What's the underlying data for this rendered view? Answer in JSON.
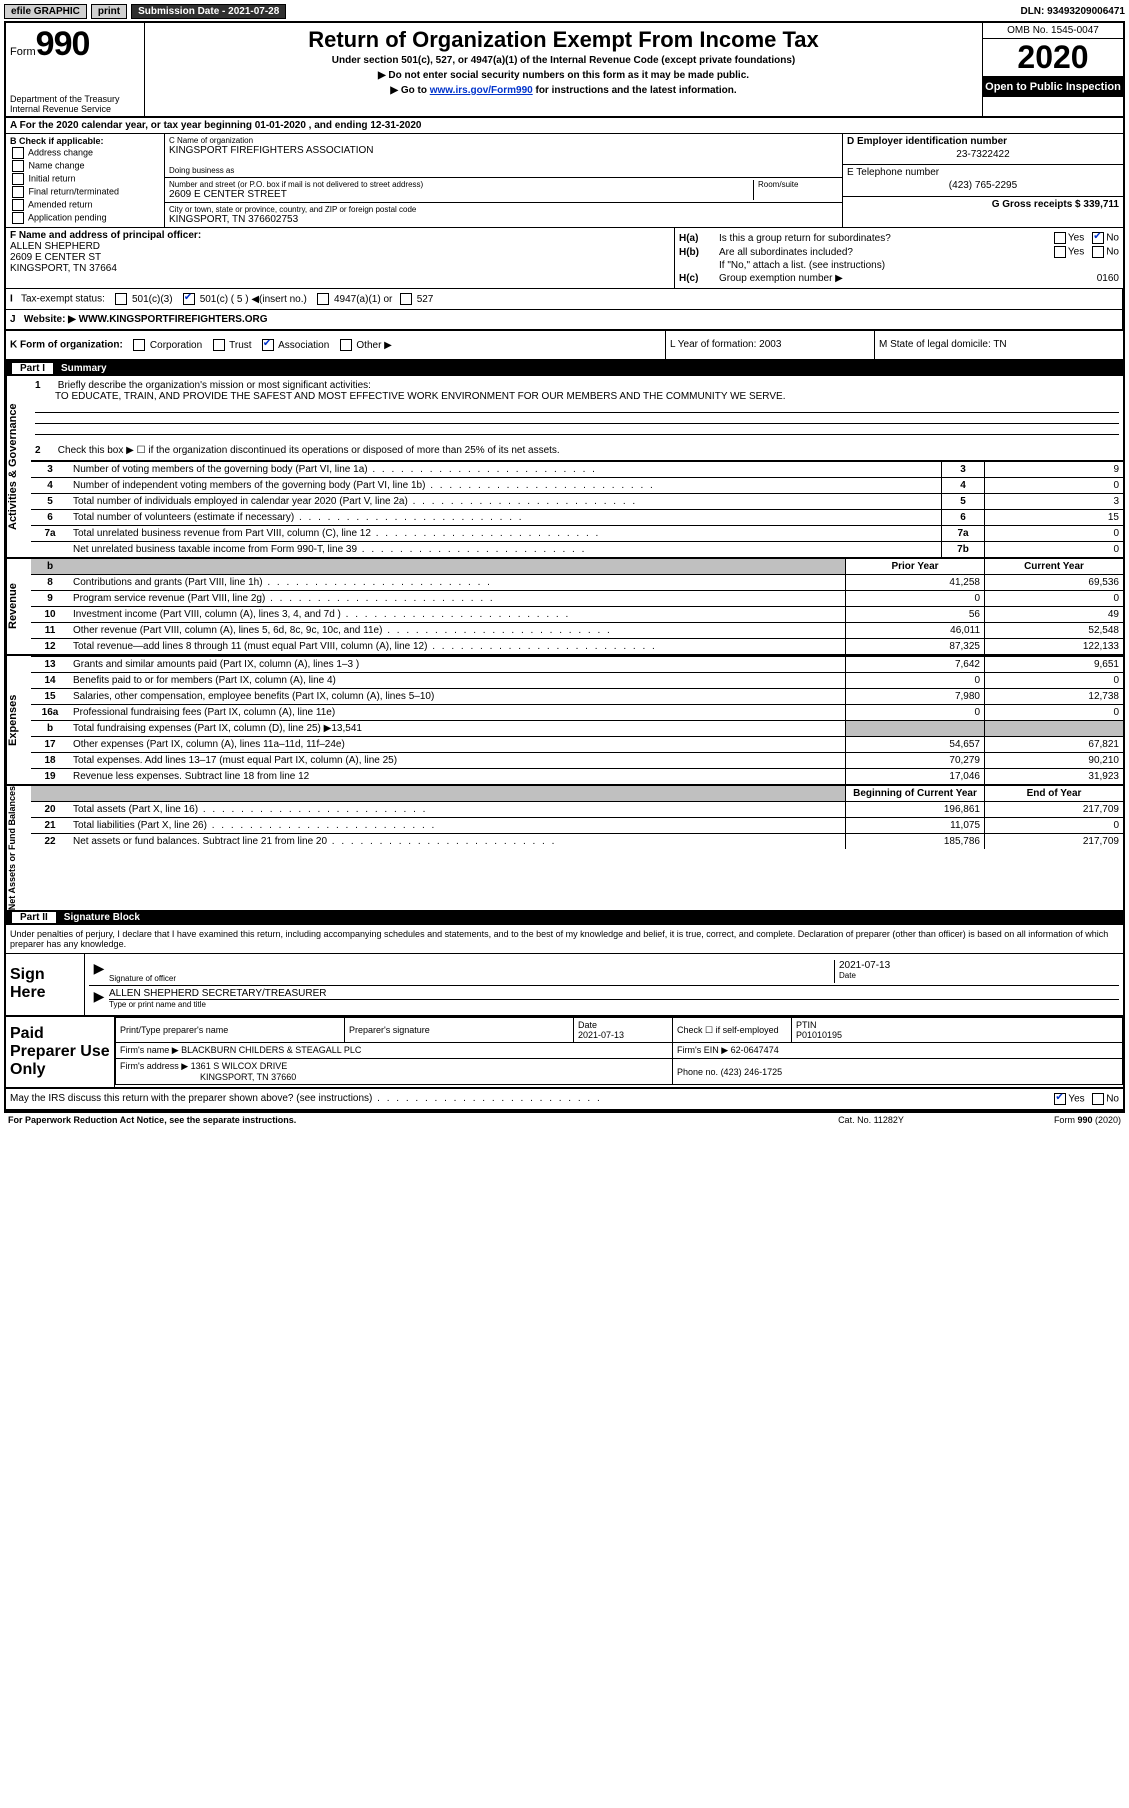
{
  "topbar": {
    "efile_label": "efile GRAPHIC",
    "print_label": "print",
    "submission_label": "Submission Date - 2021-07-28",
    "dln_label": "DLN: 93493209006471"
  },
  "header": {
    "form_prefix": "Form",
    "form_number": "990",
    "dept": "Department of the Treasury\nInternal Revenue Service",
    "title": "Return of Organization Exempt From Income Tax",
    "subtitle": "Under section 501(c), 527, or 4947(a)(1) of the Internal Revenue Code (except private foundations)",
    "warning": "▶ Do not enter social security numbers on this form as it may be made public.",
    "goto": "▶ Go to www.irs.gov/Form990 for instructions and the latest information.",
    "goto_link": "www.irs.gov/Form990",
    "omb": "OMB No. 1545-0047",
    "year": "2020",
    "inspection": "Open to Public Inspection"
  },
  "row_a": "A For the 2020 calendar year, or tax year beginning 01-01-2020   , and ending 12-31-2020",
  "col_b": {
    "header": "B Check if applicable:",
    "items": [
      "Address change",
      "Name change",
      "Initial return",
      "Final return/terminated",
      "Amended return",
      "Application pending"
    ]
  },
  "col_c": {
    "name_label": "C Name of organization",
    "name": "KINGSPORT FIREFIGHTERS ASSOCIATION",
    "dba_label": "Doing business as",
    "dba": "",
    "addr_label": "Number and street (or P.O. box if mail is not delivered to street address)",
    "addr": "2609 E CENTER STREET",
    "room_label": "Room/suite",
    "city_label": "City or town, state or province, country, and ZIP or foreign postal code",
    "city": "KINGSPORT, TN  376602753"
  },
  "col_d": {
    "ein_label": "D Employer identification number",
    "ein": "23-7322422",
    "phone_label": "E Telephone number",
    "phone": "(423) 765-2295",
    "gross_label": "G Gross receipts $ 339,711"
  },
  "section_f": {
    "label": "F Name and address of principal officer:",
    "name": "ALLEN SHEPHERD",
    "addr1": "2609 E CENTER ST",
    "addr2": "KINGSPORT, TN  37664"
  },
  "section_h": {
    "ha_label": "H(a)",
    "ha_text": "Is this a group return for subordinates?",
    "ha_yes": "Yes",
    "ha_no": "No",
    "hb_label": "H(b)",
    "hb_text": "Are all subordinates included?",
    "hb_note": "If \"No,\" attach a list. (see instructions)",
    "hc_label": "H(c)",
    "hc_text": "Group exemption number ▶",
    "hc_val": "0160"
  },
  "tax_exempt": {
    "label_i": "I",
    "label": "Tax-exempt status:",
    "opt1": "501(c)(3)",
    "opt2": "501(c) ( 5 ) ◀(insert no.)",
    "opt3": "4947(a)(1) or",
    "opt4": "527"
  },
  "website": {
    "label_j": "J",
    "label": "Website: ▶",
    "url": "WWW.KINGSPORTFIREFIGHTERS.ORG"
  },
  "form_org": {
    "label_k": "K Form of organization:",
    "opts": [
      "Corporation",
      "Trust",
      "Association",
      "Other ▶"
    ],
    "label_l": "L Year of formation: 2003",
    "label_m": "M State of legal domicile: TN"
  },
  "part1": {
    "header_num": "Part I",
    "header_title": "Summary",
    "line1_label": "1",
    "line1_text": "Briefly describe the organization's mission or most significant activities:",
    "line1_val": "TO EDUCATE, TRAIN, AND PROVIDE THE SAFEST AND MOST EFFECTIVE WORK ENVIRONMENT FOR OUR MEMBERS AND THE COMMUNITY WE SERVE.",
    "line2_num": "2",
    "line2_text": "Check this box ▶ ☐ if the organization discontinued its operations or disposed of more than 25% of its net assets."
  },
  "activities_label": "Activities & Governance",
  "revenue_label": "Revenue",
  "expenses_label": "Expenses",
  "netassets_label": "Net Assets or Fund Balances",
  "summary_rows_boxed": [
    {
      "num": "3",
      "text": "Number of voting members of the governing body (Part VI, line 1a)",
      "box": "3",
      "val": "9"
    },
    {
      "num": "4",
      "text": "Number of independent voting members of the governing body (Part VI, line 1b)",
      "box": "4",
      "val": "0"
    },
    {
      "num": "5",
      "text": "Total number of individuals employed in calendar year 2020 (Part V, line 2a)",
      "box": "5",
      "val": "3"
    },
    {
      "num": "6",
      "text": "Total number of volunteers (estimate if necessary)",
      "box": "6",
      "val": "15"
    },
    {
      "num": "7a",
      "text": "Total unrelated business revenue from Part VIII, column (C), line 12",
      "box": "7a",
      "val": "0"
    },
    {
      "num": "",
      "text": "Net unrelated business taxable income from Form 990-T, line 39",
      "box": "7b",
      "val": "0"
    }
  ],
  "prior_year_label": "Prior Year",
  "current_year_label": "Current Year",
  "revenue_rows": [
    {
      "num": "8",
      "text": "Contributions and grants (Part VIII, line 1h)",
      "prior": "41,258",
      "curr": "69,536"
    },
    {
      "num": "9",
      "text": "Program service revenue (Part VIII, line 2g)",
      "prior": "0",
      "curr": "0"
    },
    {
      "num": "10",
      "text": "Investment income (Part VIII, column (A), lines 3, 4, and 7d )",
      "prior": "56",
      "curr": "49"
    },
    {
      "num": "11",
      "text": "Other revenue (Part VIII, column (A), lines 5, 6d, 8c, 9c, 10c, and 11e)",
      "prior": "46,011",
      "curr": "52,548"
    },
    {
      "num": "12",
      "text": "Total revenue—add lines 8 through 11 (must equal Part VIII, column (A), line 12)",
      "prior": "87,325",
      "curr": "122,133"
    }
  ],
  "expense_rows": [
    {
      "num": "13",
      "text": "Grants and similar amounts paid (Part IX, column (A), lines 1–3 )",
      "prior": "7,642",
      "curr": "9,651"
    },
    {
      "num": "14",
      "text": "Benefits paid to or for members (Part IX, column (A), line 4)",
      "prior": "0",
      "curr": "0"
    },
    {
      "num": "15",
      "text": "Salaries, other compensation, employee benefits (Part IX, column (A), lines 5–10)",
      "prior": "7,980",
      "curr": "12,738"
    },
    {
      "num": "16a",
      "text": "Professional fundraising fees (Part IX, column (A), line 11e)",
      "prior": "0",
      "curr": "0"
    },
    {
      "num": "b",
      "text": "Total fundraising expenses (Part IX, column (D), line 25) ▶13,541",
      "prior": "",
      "curr": "",
      "shaded": true
    },
    {
      "num": "17",
      "text": "Other expenses (Part IX, column (A), lines 11a–11d, 11f–24e)",
      "prior": "54,657",
      "curr": "67,821"
    },
    {
      "num": "18",
      "text": "Total expenses. Add lines 13–17 (must equal Part IX, column (A), line 25)",
      "prior": "70,279",
      "curr": "90,210"
    },
    {
      "num": "19",
      "text": "Revenue less expenses. Subtract line 18 from line 12",
      "prior": "17,046",
      "curr": "31,923"
    }
  ],
  "begin_year_label": "Beginning of Current Year",
  "end_year_label": "End of Year",
  "netasset_rows": [
    {
      "num": "20",
      "text": "Total assets (Part X, line 16)",
      "prior": "196,861",
      "curr": "217,709"
    },
    {
      "num": "21",
      "text": "Total liabilities (Part X, line 26)",
      "prior": "11,075",
      "curr": "0"
    },
    {
      "num": "22",
      "text": "Net assets or fund balances. Subtract line 21 from line 20",
      "prior": "185,786",
      "curr": "217,709"
    }
  ],
  "part2": {
    "header_num": "Part II",
    "header_title": "Signature Block"
  },
  "penalties": "Under penalties of perjury, I declare that I have examined this return, including accompanying schedules and statements, and to the best of my knowledge and belief, it is true, correct, and complete. Declaration of preparer (other than officer) is based on all information of which preparer has any knowledge.",
  "sign": {
    "label": "Sign Here",
    "sig_label": "Signature of officer",
    "date_label": "Date",
    "date_val": "2021-07-13",
    "name": "ALLEN SHEPHERD SECRETARY/TREASURER",
    "name_label": "Type or print name and title"
  },
  "preparer": {
    "label": "Paid Preparer Use Only",
    "name_label": "Print/Type preparer's name",
    "sig_label": "Preparer's signature",
    "date_label": "Date",
    "date_val": "2021-07-13",
    "check_label": "Check ☐ if self-employed",
    "ptin_label": "PTIN",
    "ptin_val": "P01010195",
    "firm_name_label": "Firm's name    ▶",
    "firm_name": "BLACKBURN CHILDERS & STEAGALL PLC",
    "firm_ein_label": "Firm's EIN ▶",
    "firm_ein": "62-0647474",
    "firm_addr_label": "Firm's address ▶",
    "firm_addr1": "1361 S WILCOX DRIVE",
    "firm_addr2": "KINGSPORT, TN  37660",
    "phone_label": "Phone no.",
    "phone": "(423) 246-1725"
  },
  "discuss": "May the IRS discuss this return with the preparer shown above? (see instructions)",
  "discuss_yes": "Yes",
  "discuss_no": "No",
  "footer": {
    "left": "For Paperwork Reduction Act Notice, see the separate instructions.",
    "mid": "Cat. No. 11282Y",
    "right": "Form 990 (2020)"
  }
}
